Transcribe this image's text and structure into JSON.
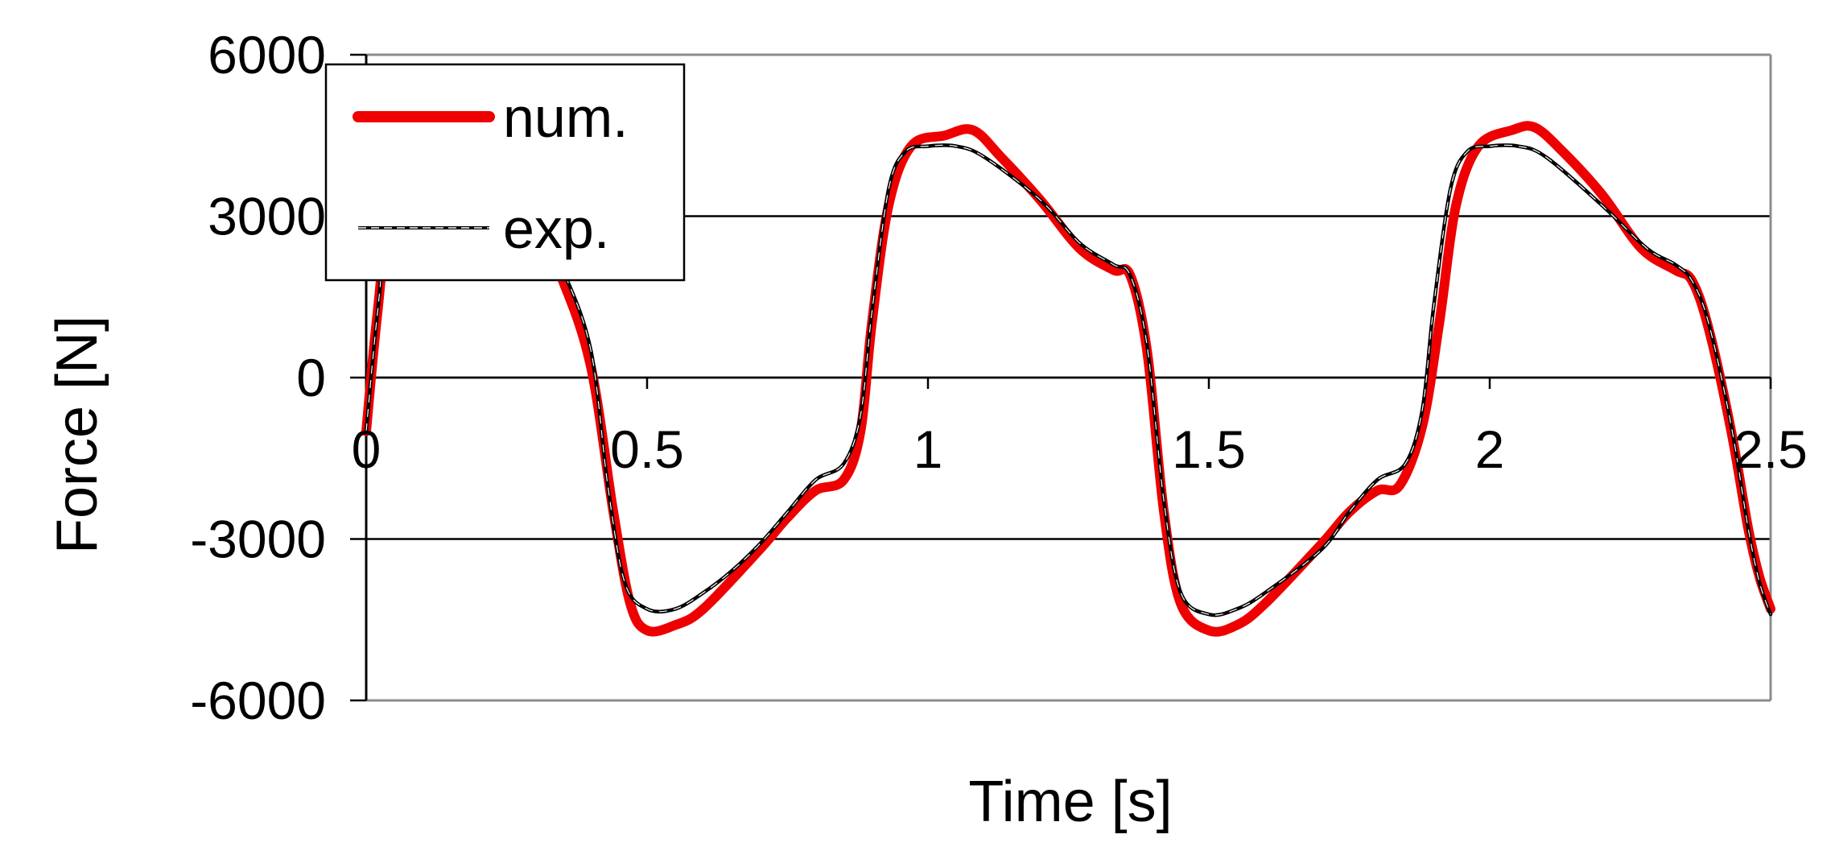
{
  "chart_data": {
    "type": "line",
    "title": "",
    "xlabel": "Time [s]",
    "ylabel": "Force [N]",
    "xlim": [
      0,
      2.5
    ],
    "ylim": [
      -6000,
      6000
    ],
    "x_ticks": [
      0,
      0.5,
      1,
      1.5,
      2,
      2.5
    ],
    "x_tick_labels": [
      "0",
      "0.5",
      "1",
      "1.5",
      "2",
      "2.5"
    ],
    "y_ticks": [
      -6000,
      -3000,
      0,
      3000,
      6000
    ],
    "y_tick_labels": [
      "-6000",
      "-3000",
      "0",
      "3000",
      "6000"
    ],
    "grid": "horizontal",
    "legend_position": "top-left",
    "series": [
      {
        "name": "num.",
        "color": "#ee0000",
        "points": [
          [
            0.0,
            -1000
          ],
          [
            0.02,
            1200
          ],
          [
            0.05,
            3800
          ],
          [
            0.1,
            4400
          ],
          [
            0.2,
            4200
          ],
          [
            0.3,
            2800
          ],
          [
            0.35,
            1800
          ],
          [
            0.4,
            200
          ],
          [
            0.44,
            -2500
          ],
          [
            0.47,
            -4200
          ],
          [
            0.5,
            -4700
          ],
          [
            0.55,
            -4600
          ],
          [
            0.6,
            -4300
          ],
          [
            0.7,
            -3200
          ],
          [
            0.75,
            -2600
          ],
          [
            0.8,
            -2100
          ],
          [
            0.85,
            -1900
          ],
          [
            0.88,
            -1000
          ],
          [
            0.9,
            1000
          ],
          [
            0.93,
            3200
          ],
          [
            0.97,
            4300
          ],
          [
            1.03,
            4500
          ],
          [
            1.08,
            4600
          ],
          [
            1.13,
            4100
          ],
          [
            1.2,
            3300
          ],
          [
            1.27,
            2400
          ],
          [
            1.33,
            2000
          ],
          [
            1.36,
            1900
          ],
          [
            1.39,
            500
          ],
          [
            1.42,
            -2500
          ],
          [
            1.45,
            -4200
          ],
          [
            1.5,
            -4700
          ],
          [
            1.55,
            -4600
          ],
          [
            1.6,
            -4200
          ],
          [
            1.7,
            -3100
          ],
          [
            1.75,
            -2500
          ],
          [
            1.8,
            -2100
          ],
          [
            1.84,
            -2000
          ],
          [
            1.88,
            -900
          ],
          [
            1.91,
            1000
          ],
          [
            1.94,
            3200
          ],
          [
            1.98,
            4300
          ],
          [
            2.04,
            4600
          ],
          [
            2.08,
            4650
          ],
          [
            2.13,
            4200
          ],
          [
            2.2,
            3400
          ],
          [
            2.27,
            2400
          ],
          [
            2.33,
            2000
          ],
          [
            2.36,
            1800
          ],
          [
            2.39,
            900
          ],
          [
            2.43,
            -1000
          ],
          [
            2.46,
            -2800
          ],
          [
            2.48,
            -3700
          ],
          [
            2.5,
            -4300
          ]
        ]
      },
      {
        "name": "exp.",
        "color": "#000000",
        "points": [
          [
            0.0,
            -1000
          ],
          [
            0.02,
            1200
          ],
          [
            0.05,
            3800
          ],
          [
            0.1,
            4400
          ],
          [
            0.2,
            4300
          ],
          [
            0.3,
            3000
          ],
          [
            0.35,
            2000
          ],
          [
            0.4,
            500
          ],
          [
            0.43,
            -2000
          ],
          [
            0.46,
            -3800
          ],
          [
            0.5,
            -4300
          ],
          [
            0.55,
            -4300
          ],
          [
            0.6,
            -4000
          ],
          [
            0.65,
            -3600
          ],
          [
            0.7,
            -3100
          ],
          [
            0.75,
            -2500
          ],
          [
            0.8,
            -1900
          ],
          [
            0.85,
            -1600
          ],
          [
            0.88,
            -700
          ],
          [
            0.9,
            1200
          ],
          [
            0.93,
            3500
          ],
          [
            0.96,
            4200
          ],
          [
            1.0,
            4300
          ],
          [
            1.05,
            4300
          ],
          [
            1.1,
            4100
          ],
          [
            1.2,
            3300
          ],
          [
            1.27,
            2500
          ],
          [
            1.33,
            2100
          ],
          [
            1.36,
            1900
          ],
          [
            1.39,
            600
          ],
          [
            1.42,
            -2300
          ],
          [
            1.45,
            -4000
          ],
          [
            1.5,
            -4400
          ],
          [
            1.55,
            -4300
          ],
          [
            1.6,
            -4000
          ],
          [
            1.7,
            -3200
          ],
          [
            1.75,
            -2500
          ],
          [
            1.8,
            -1900
          ],
          [
            1.85,
            -1600
          ],
          [
            1.88,
            -600
          ],
          [
            1.9,
            1300
          ],
          [
            1.93,
            3500
          ],
          [
            1.96,
            4200
          ],
          [
            2.0,
            4300
          ],
          [
            2.05,
            4300
          ],
          [
            2.1,
            4100
          ],
          [
            2.2,
            3200
          ],
          [
            2.28,
            2400
          ],
          [
            2.33,
            2100
          ],
          [
            2.36,
            1800
          ],
          [
            2.39,
            1000
          ],
          [
            2.43,
            -900
          ],
          [
            2.46,
            -2800
          ],
          [
            2.48,
            -3800
          ],
          [
            2.5,
            -4400
          ]
        ]
      }
    ]
  }
}
